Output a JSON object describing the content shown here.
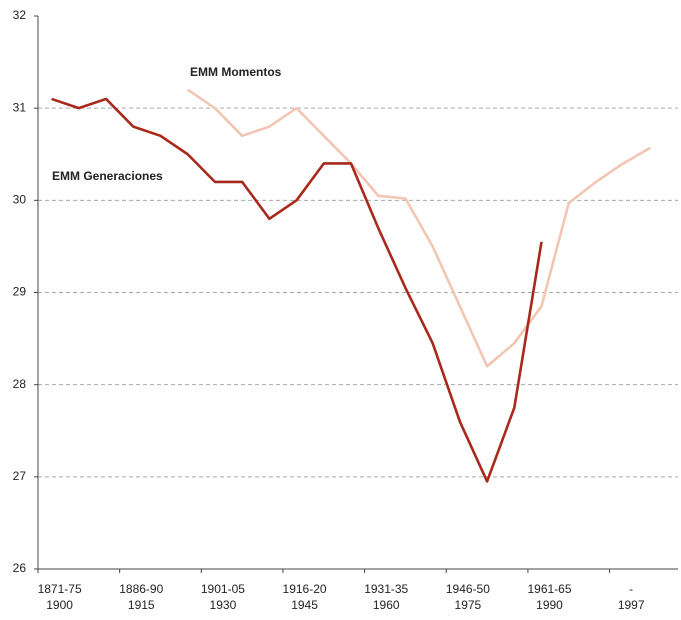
{
  "chart_data": {
    "type": "line",
    "categories": [
      "1871-75",
      null,
      null,
      "1886-90",
      null,
      null,
      "1901-05",
      null,
      null,
      "1916-20",
      null,
      null,
      "1931-35",
      null,
      null,
      "1946-50",
      null,
      null,
      "1961-65",
      null,
      null,
      "-",
      null
    ],
    "categories_bottom": [
      "1900",
      null,
      null,
      "1915",
      null,
      null,
      "1930",
      null,
      null,
      "1945",
      null,
      null,
      "1960",
      null,
      null,
      "1975",
      null,
      null,
      "1990",
      null,
      null,
      "1997",
      null
    ],
    "series": [
      {
        "name": "EMM Generaciones",
        "color": "#a8291c",
        "values": [
          31.1,
          31.0,
          31.1,
          30.8,
          30.7,
          30.5,
          30.2,
          30.2,
          29.8,
          30.0,
          30.4,
          30.4,
          29.7,
          29.05,
          28.45,
          27.6,
          26.95,
          27.75,
          29.55,
          null,
          null,
          null,
          null
        ]
      },
      {
        "name": "EMM Momentos",
        "color": "#f2c6b3",
        "values": [
          null,
          null,
          null,
          null,
          null,
          31.2,
          31.0,
          30.7,
          30.8,
          31.0,
          30.7,
          30.4,
          30.05,
          30.02,
          29.5,
          28.85,
          28.2,
          28.45,
          28.85,
          29.97,
          30.2,
          30.4,
          30.57
        ]
      }
    ],
    "ylim": [
      26,
      32
    ],
    "yticks": [
      26,
      27,
      28,
      29,
      30,
      31,
      32
    ],
    "grid": true
  }
}
